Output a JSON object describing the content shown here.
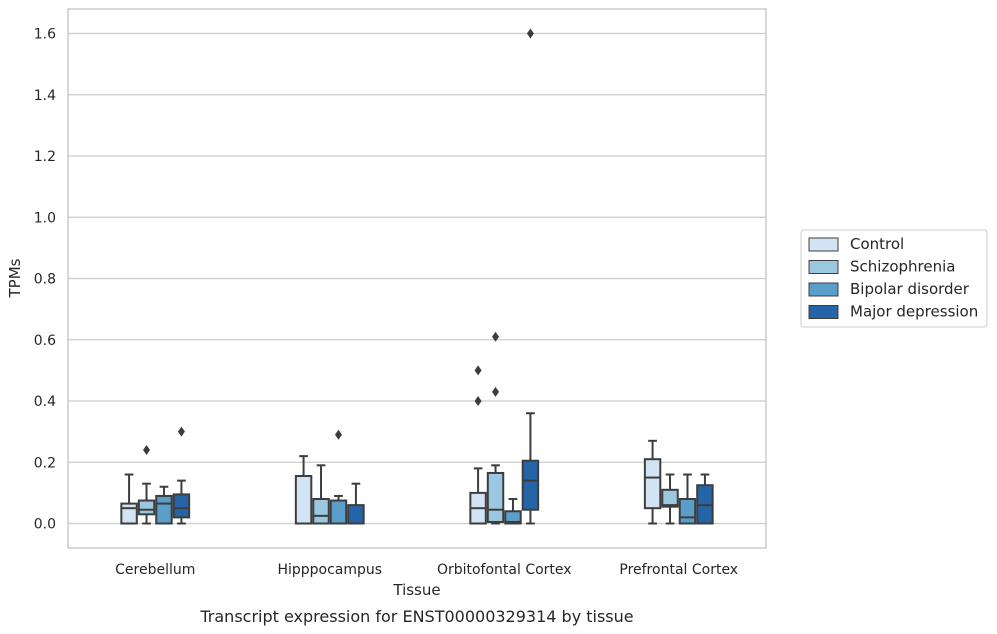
{
  "chart_data": {
    "type": "box",
    "xlabel": "Tissue",
    "ylabel": "TPMs",
    "caption": "Transcript expression for ENST00000329314 by tissue",
    "ylim": [
      -0.08,
      1.68
    ],
    "yticks": [
      0.0,
      0.2,
      0.4,
      0.6,
      0.8,
      1.0,
      1.2,
      1.4,
      1.6
    ],
    "ytick_labels": [
      "0.0",
      "0.2",
      "0.4",
      "0.6",
      "0.8",
      "1.0",
      "1.2",
      "1.4",
      "1.6"
    ],
    "grid": "horizontal",
    "legend_position": "right",
    "categories": [
      "Cerebellum",
      "Hipppocampus",
      "Orbitofontal Cortex",
      "Prefrontal Cortex"
    ],
    "series": [
      {
        "name": "Control",
        "color": "#d2e3f3",
        "boxes": [
          {
            "whislo": 0.0,
            "q1": 0.0,
            "med": 0.05,
            "q3": 0.065,
            "whishi": 0.16,
            "fliers": []
          },
          {
            "whislo": 0.0,
            "q1": 0.0,
            "med": 0.0,
            "q3": 0.155,
            "whishi": 0.22,
            "fliers": []
          },
          {
            "whislo": 0.0,
            "q1": 0.0,
            "med": 0.05,
            "q3": 0.1,
            "whishi": 0.18,
            "fliers": [
              0.4,
              0.5
            ]
          },
          {
            "whislo": 0.0,
            "q1": 0.05,
            "med": 0.15,
            "q3": 0.21,
            "whishi": 0.27,
            "fliers": []
          }
        ]
      },
      {
        "name": "Schizophrenia",
        "color": "#9ac8e0",
        "boxes": [
          {
            "whislo": 0.0,
            "q1": 0.03,
            "med": 0.045,
            "q3": 0.075,
            "whishi": 0.13,
            "fliers": [
              0.24
            ]
          },
          {
            "whislo": 0.0,
            "q1": 0.0,
            "med": 0.025,
            "q3": 0.08,
            "whishi": 0.19,
            "fliers": []
          },
          {
            "whislo": 0.0,
            "q1": 0.005,
            "med": 0.045,
            "q3": 0.165,
            "whishi": 0.19,
            "fliers": [
              0.43,
              0.61
            ]
          },
          {
            "whislo": 0.0,
            "q1": 0.055,
            "med": 0.06,
            "q3": 0.11,
            "whishi": 0.16,
            "fliers": []
          }
        ]
      },
      {
        "name": "Bipolar disorder",
        "color": "#5a9ec9",
        "boxes": [
          {
            "whislo": 0.0,
            "q1": 0.0,
            "med": 0.065,
            "q3": 0.09,
            "whishi": 0.12,
            "fliers": []
          },
          {
            "whislo": 0.0,
            "q1": 0.0,
            "med": 0.0,
            "q3": 0.075,
            "whishi": 0.09,
            "fliers": [
              0.29
            ]
          },
          {
            "whislo": 0.0,
            "q1": 0.0,
            "med": 0.005,
            "q3": 0.04,
            "whishi": 0.08,
            "fliers": []
          },
          {
            "whislo": 0.0,
            "q1": 0.0,
            "med": 0.02,
            "q3": 0.08,
            "whishi": 0.16,
            "fliers": []
          }
        ]
      },
      {
        "name": "Major depression",
        "color": "#2565a7",
        "boxes": [
          {
            "whislo": 0.0,
            "q1": 0.02,
            "med": 0.05,
            "q3": 0.095,
            "whishi": 0.14,
            "fliers": [
              0.3
            ]
          },
          {
            "whislo": 0.0,
            "q1": 0.0,
            "med": 0.0,
            "q3": 0.06,
            "whishi": 0.13,
            "fliers": []
          },
          {
            "whislo": 0.0,
            "q1": 0.045,
            "med": 0.14,
            "q3": 0.205,
            "whishi": 0.36,
            "fliers": [
              1.6
            ]
          },
          {
            "whislo": 0.0,
            "q1": 0.0,
            "med": 0.06,
            "q3": 0.125,
            "whishi": 0.16,
            "fliers": []
          }
        ]
      }
    ]
  }
}
